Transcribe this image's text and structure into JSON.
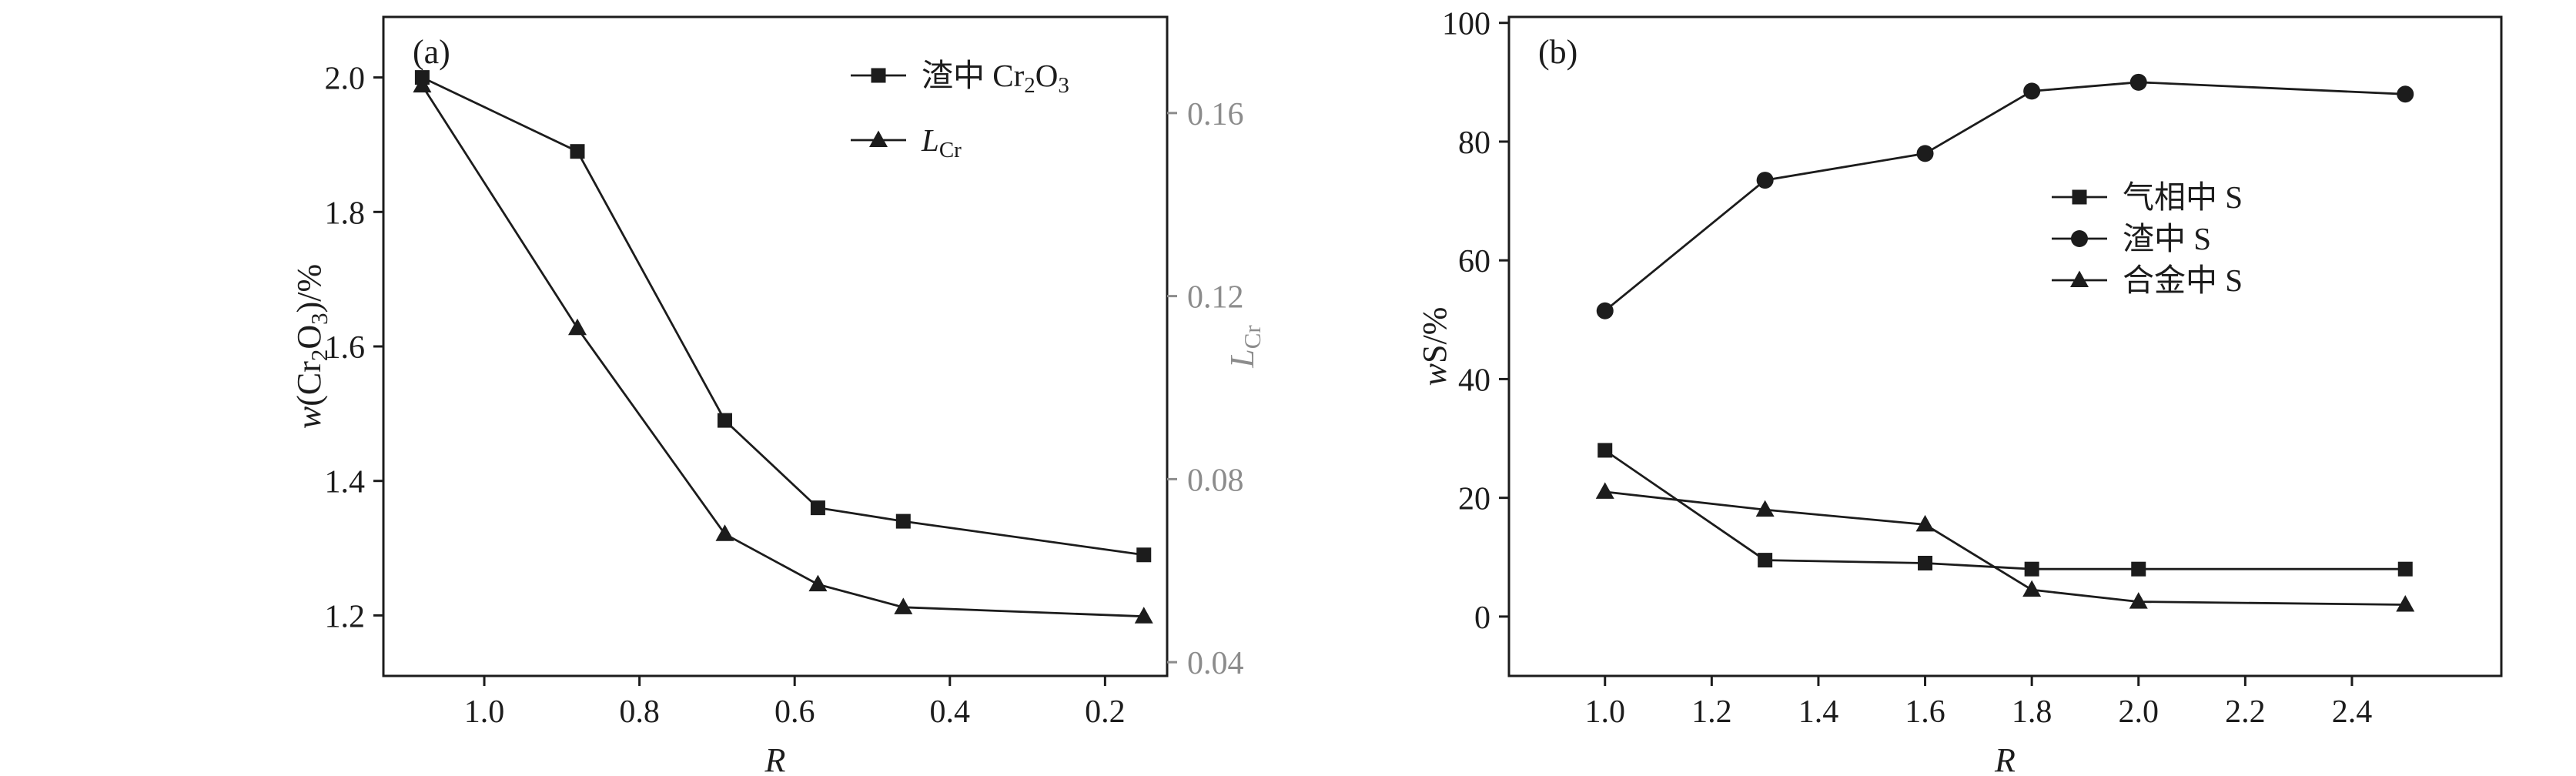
{
  "figure": {
    "background": "#ffffff",
    "ink_color": "#1c1c1c",
    "secondary_axis_color": "#8c8c8c",
    "panel_labels": [
      "(a)",
      "(b)"
    ]
  },
  "chart_data": [
    {
      "type": "line",
      "panel_label": "(a)",
      "grid": false,
      "legend_position": "upper-right-inside",
      "x_axis": {
        "label": "R",
        "label_segments": [
          {
            "t": "R",
            "i": true
          }
        ],
        "ticks": [
          1.0,
          0.8,
          0.6,
          0.4,
          0.2
        ],
        "tick_labels": [
          "1.0",
          "0.8",
          "0.6",
          "0.4",
          "0.2"
        ],
        "range": [
          1.13,
          0.12
        ],
        "reversed": true
      },
      "y_left": {
        "label": "w(Cr2O3)/%",
        "label_segments": [
          {
            "t": "w",
            "i": true
          },
          {
            "t": "(Cr"
          },
          {
            "t": "2",
            "sub": true
          },
          {
            "t": "O"
          },
          {
            "t": "3",
            "sub": true
          },
          {
            "t": ")/%"
          }
        ],
        "ticks": [
          1.2,
          1.4,
          1.6,
          1.8,
          2.0
        ],
        "tick_labels": [
          "1.2",
          "1.4",
          "1.6",
          "1.8",
          "2.0"
        ],
        "range": [
          1.11,
          2.09
        ]
      },
      "y_right": {
        "label": "LCr",
        "label_segments": [
          {
            "t": "L",
            "i": true
          },
          {
            "t": "Cr",
            "sub": true
          }
        ],
        "ticks": [
          0.04,
          0.08,
          0.12,
          0.16
        ],
        "tick_labels": [
          "0.04",
          "0.08",
          "0.12",
          "0.16"
        ],
        "range": [
          0.037,
          0.181
        ]
      },
      "series": [
        {
          "name": "渣中 Cr2O3",
          "label_segments": [
            {
              "t": "渣中 Cr"
            },
            {
              "t": "2",
              "sub": true
            },
            {
              "t": "O"
            },
            {
              "t": "3",
              "sub": true
            }
          ],
          "marker": "square",
          "axis": "left",
          "x": [
            1.08,
            0.88,
            0.69,
            0.57,
            0.46,
            0.15
          ],
          "y": [
            2.0,
            1.89,
            1.49,
            1.36,
            1.34,
            1.29
          ]
        },
        {
          "name": "LCr",
          "label_segments": [
            {
              "t": "L",
              "i": true
            },
            {
              "t": "Cr",
              "sub": true
            }
          ],
          "marker": "triangle",
          "axis": "right",
          "x": [
            1.08,
            0.88,
            0.69,
            0.57,
            0.46,
            0.15
          ],
          "y": [
            0.166,
            0.113,
            0.068,
            0.057,
            0.052,
            0.05
          ]
        }
      ]
    },
    {
      "type": "line",
      "panel_label": "(b)",
      "grid": false,
      "legend_position": "center-right-inside",
      "x_axis": {
        "label": "R",
        "label_segments": [
          {
            "t": "R",
            "i": true
          }
        ],
        "ticks": [
          1.0,
          1.2,
          1.4,
          1.6,
          1.8,
          2.0,
          2.2,
          2.4
        ],
        "tick_labels": [
          "1.0",
          "1.2",
          "1.4",
          "1.6",
          "1.8",
          "2.0",
          "2.2",
          "2.4"
        ],
        "range": [
          0.82,
          2.68
        ]
      },
      "y_left": {
        "label": "wS/%",
        "label_segments": [
          {
            "t": "w",
            "i": true
          },
          {
            "t": "S/%"
          }
        ],
        "ticks": [
          0,
          20,
          40,
          60,
          80,
          100
        ],
        "tick_labels": [
          "0",
          "20",
          "40",
          "60",
          "80",
          "100"
        ],
        "range": [
          -10,
          101
        ]
      },
      "series": [
        {
          "name": "气相中 S",
          "label_segments": [
            {
              "t": "气相中 S"
            }
          ],
          "marker": "square",
          "axis": "left",
          "x": [
            1.0,
            1.3,
            1.6,
            1.8,
            2.0,
            2.5
          ],
          "y": [
            28,
            9.5,
            9,
            8,
            8,
            8
          ]
        },
        {
          "name": "渣中 S",
          "label_segments": [
            {
              "t": "渣中 S"
            }
          ],
          "marker": "circle",
          "axis": "left",
          "x": [
            1.0,
            1.3,
            1.6,
            1.8,
            2.0,
            2.5
          ],
          "y": [
            51.5,
            73.5,
            78,
            88.5,
            90,
            88
          ]
        },
        {
          "name": "合金中 S",
          "label_segments": [
            {
              "t": "合金中 S"
            }
          ],
          "marker": "triangle",
          "axis": "left",
          "x": [
            1.0,
            1.3,
            1.6,
            1.8,
            2.0,
            2.5
          ],
          "y": [
            21,
            18,
            15.5,
            4.5,
            2.5,
            2
          ]
        }
      ]
    }
  ]
}
